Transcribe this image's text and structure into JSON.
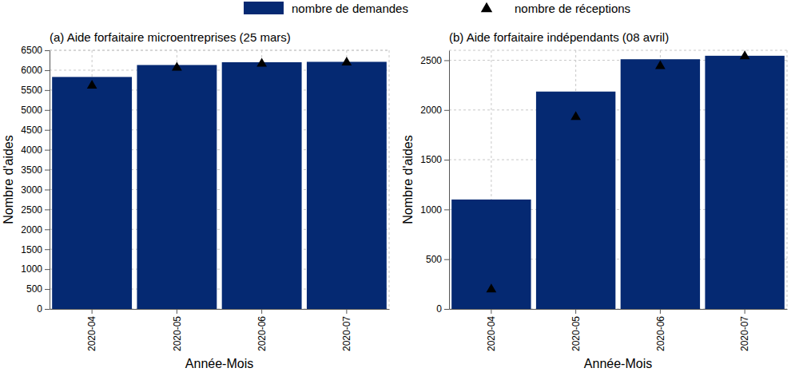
{
  "chart_data": [
    {
      "type": "bar",
      "title": "(a) Aide forfaitaire microentreprises (25 mars)",
      "x_label": "Année-Mois",
      "y_label": "Nombre d'aides",
      "categories": [
        "2020-04",
        "2020-05",
        "2020-06",
        "2020-07"
      ],
      "series": [
        {
          "name": "nombre de demandes",
          "type": "bar",
          "color": "#052972",
          "values": [
            5830,
            6130,
            6200,
            6210
          ]
        },
        {
          "name": "nombre de réceptions",
          "type": "scatter",
          "marker": "triangle",
          "color": "#000000",
          "values": [
            5610,
            6060,
            6160,
            6190
          ]
        }
      ],
      "ylim": [
        0,
        6500
      ],
      "yticks": [
        0,
        500,
        1000,
        1500,
        2000,
        2500,
        3000,
        3500,
        4000,
        4500,
        5000,
        5500,
        6000,
        6500
      ],
      "grid": true,
      "legend": "top"
    },
    {
      "type": "bar",
      "title": "(b) Aide forfaitaire indépendants (08 avril)",
      "x_label": "Année-Mois",
      "y_label": "Nombre d'aides",
      "categories": [
        "2020-04",
        "2020-05",
        "2020-06",
        "2020-07"
      ],
      "series": [
        {
          "name": "nombre de demandes",
          "type": "bar",
          "color": "#052972",
          "values": [
            1100,
            2185,
            2510,
            2545
          ]
        },
        {
          "name": "nombre de réceptions",
          "type": "scatter",
          "marker": "triangle",
          "color": "#000000",
          "values": [
            195,
            1930,
            2440,
            2540
          ]
        }
      ],
      "ylim": [
        0,
        2600
      ],
      "yticks": [
        0,
        500,
        1000,
        1500,
        2000,
        2500
      ],
      "grid": true
    }
  ]
}
